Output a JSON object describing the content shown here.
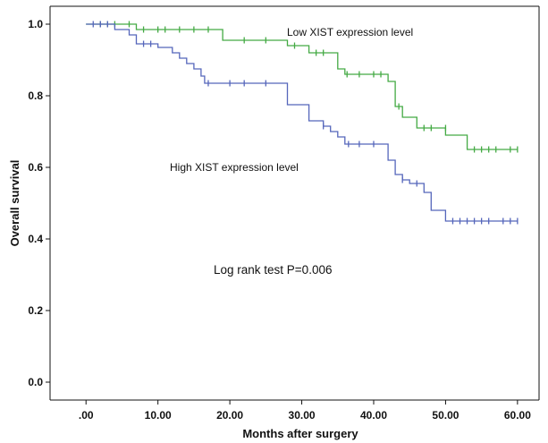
{
  "chart_data": {
    "type": "line",
    "subtype": "kaplan-meier step",
    "xlabel": "Months after surgery",
    "ylabel": "Overall survival",
    "xlim": [
      -5,
      63
    ],
    "ylim": [
      -0.05,
      1.05
    ],
    "x_ticks": [
      0,
      10,
      20,
      30,
      40,
      50,
      60
    ],
    "x_tick_labels": [
      ".00",
      "10.00",
      "20.00",
      "30.00",
      "40.00",
      "50.00",
      "60.00"
    ],
    "y_ticks": [
      0,
      0.2,
      0.4,
      0.6,
      0.8,
      1.0
    ],
    "y_tick_labels": [
      "0.0",
      "0.2",
      "0.4",
      "0.6",
      "0.8",
      "1.0"
    ],
    "grid": false,
    "colors": {
      "low": "#44aa44",
      "high": "#5566bb",
      "axis": "#111111"
    },
    "series": [
      {
        "name": "Low XIST expression level",
        "color": "#44aa44",
        "steps": [
          [
            0,
            1.0
          ],
          [
            7,
            0.985
          ],
          [
            19,
            0.955
          ],
          [
            28,
            0.94
          ],
          [
            31,
            0.92
          ],
          [
            35,
            0.875
          ],
          [
            36,
            0.86
          ],
          [
            42,
            0.84
          ],
          [
            43,
            0.77
          ],
          [
            44,
            0.74
          ],
          [
            46,
            0.71
          ],
          [
            50,
            0.69
          ],
          [
            53,
            0.65
          ],
          [
            60,
            0.65
          ]
        ],
        "censored": [
          [
            2,
            1.0
          ],
          [
            3,
            1.0
          ],
          [
            4,
            1.0
          ],
          [
            6,
            1.0
          ],
          [
            8,
            0.985
          ],
          [
            10,
            0.985
          ],
          [
            11,
            0.985
          ],
          [
            13,
            0.985
          ],
          [
            15,
            0.985
          ],
          [
            17,
            0.985
          ],
          [
            22,
            0.955
          ],
          [
            25,
            0.955
          ],
          [
            29,
            0.94
          ],
          [
            32,
            0.92
          ],
          [
            33,
            0.92
          ],
          [
            36.3,
            0.86
          ],
          [
            38,
            0.86
          ],
          [
            40,
            0.86
          ],
          [
            41,
            0.86
          ],
          [
            43.5,
            0.77
          ],
          [
            47,
            0.71
          ],
          [
            48,
            0.71
          ],
          [
            50,
            0.71
          ],
          [
            54,
            0.65
          ],
          [
            55,
            0.65
          ],
          [
            56,
            0.65
          ],
          [
            57,
            0.65
          ],
          [
            59,
            0.65
          ],
          [
            60,
            0.65
          ]
        ]
      },
      {
        "name": "High XIST expression level",
        "color": "#5566bb",
        "steps": [
          [
            0,
            1.0
          ],
          [
            4,
            0.985
          ],
          [
            6,
            0.97
          ],
          [
            7,
            0.945
          ],
          [
            10,
            0.935
          ],
          [
            12,
            0.92
          ],
          [
            13,
            0.905
          ],
          [
            14,
            0.89
          ],
          [
            15,
            0.875
          ],
          [
            16,
            0.855
          ],
          [
            16.5,
            0.835
          ],
          [
            28,
            0.775
          ],
          [
            31,
            0.73
          ],
          [
            33,
            0.715
          ],
          [
            34,
            0.7
          ],
          [
            35,
            0.685
          ],
          [
            36,
            0.665
          ],
          [
            42,
            0.62
          ],
          [
            43,
            0.58
          ],
          [
            44,
            0.565
          ],
          [
            45,
            0.555
          ],
          [
            47,
            0.53
          ],
          [
            48,
            0.48
          ],
          [
            50,
            0.45
          ],
          [
            60,
            0.45
          ]
        ],
        "censored": [
          [
            1,
            1.0
          ],
          [
            2,
            1.0
          ],
          [
            3,
            1.0
          ],
          [
            8,
            0.945
          ],
          [
            9,
            0.945
          ],
          [
            17,
            0.835
          ],
          [
            20,
            0.835
          ],
          [
            22,
            0.835
          ],
          [
            25,
            0.835
          ],
          [
            33,
            0.715
          ],
          [
            36.5,
            0.665
          ],
          [
            38,
            0.665
          ],
          [
            40,
            0.665
          ],
          [
            44,
            0.565
          ],
          [
            46,
            0.555
          ],
          [
            51,
            0.45
          ],
          [
            52,
            0.45
          ],
          [
            53,
            0.45
          ],
          [
            54,
            0.45
          ],
          [
            55,
            0.45
          ],
          [
            56,
            0.45
          ],
          [
            58,
            0.45
          ],
          [
            59,
            0.45
          ],
          [
            60,
            0.45
          ]
        ]
      }
    ],
    "annotations": {
      "low_label": "Low XIST expression level",
      "high_label": "High XIST expression level",
      "test_label": "Log rank test P=0.006"
    }
  }
}
